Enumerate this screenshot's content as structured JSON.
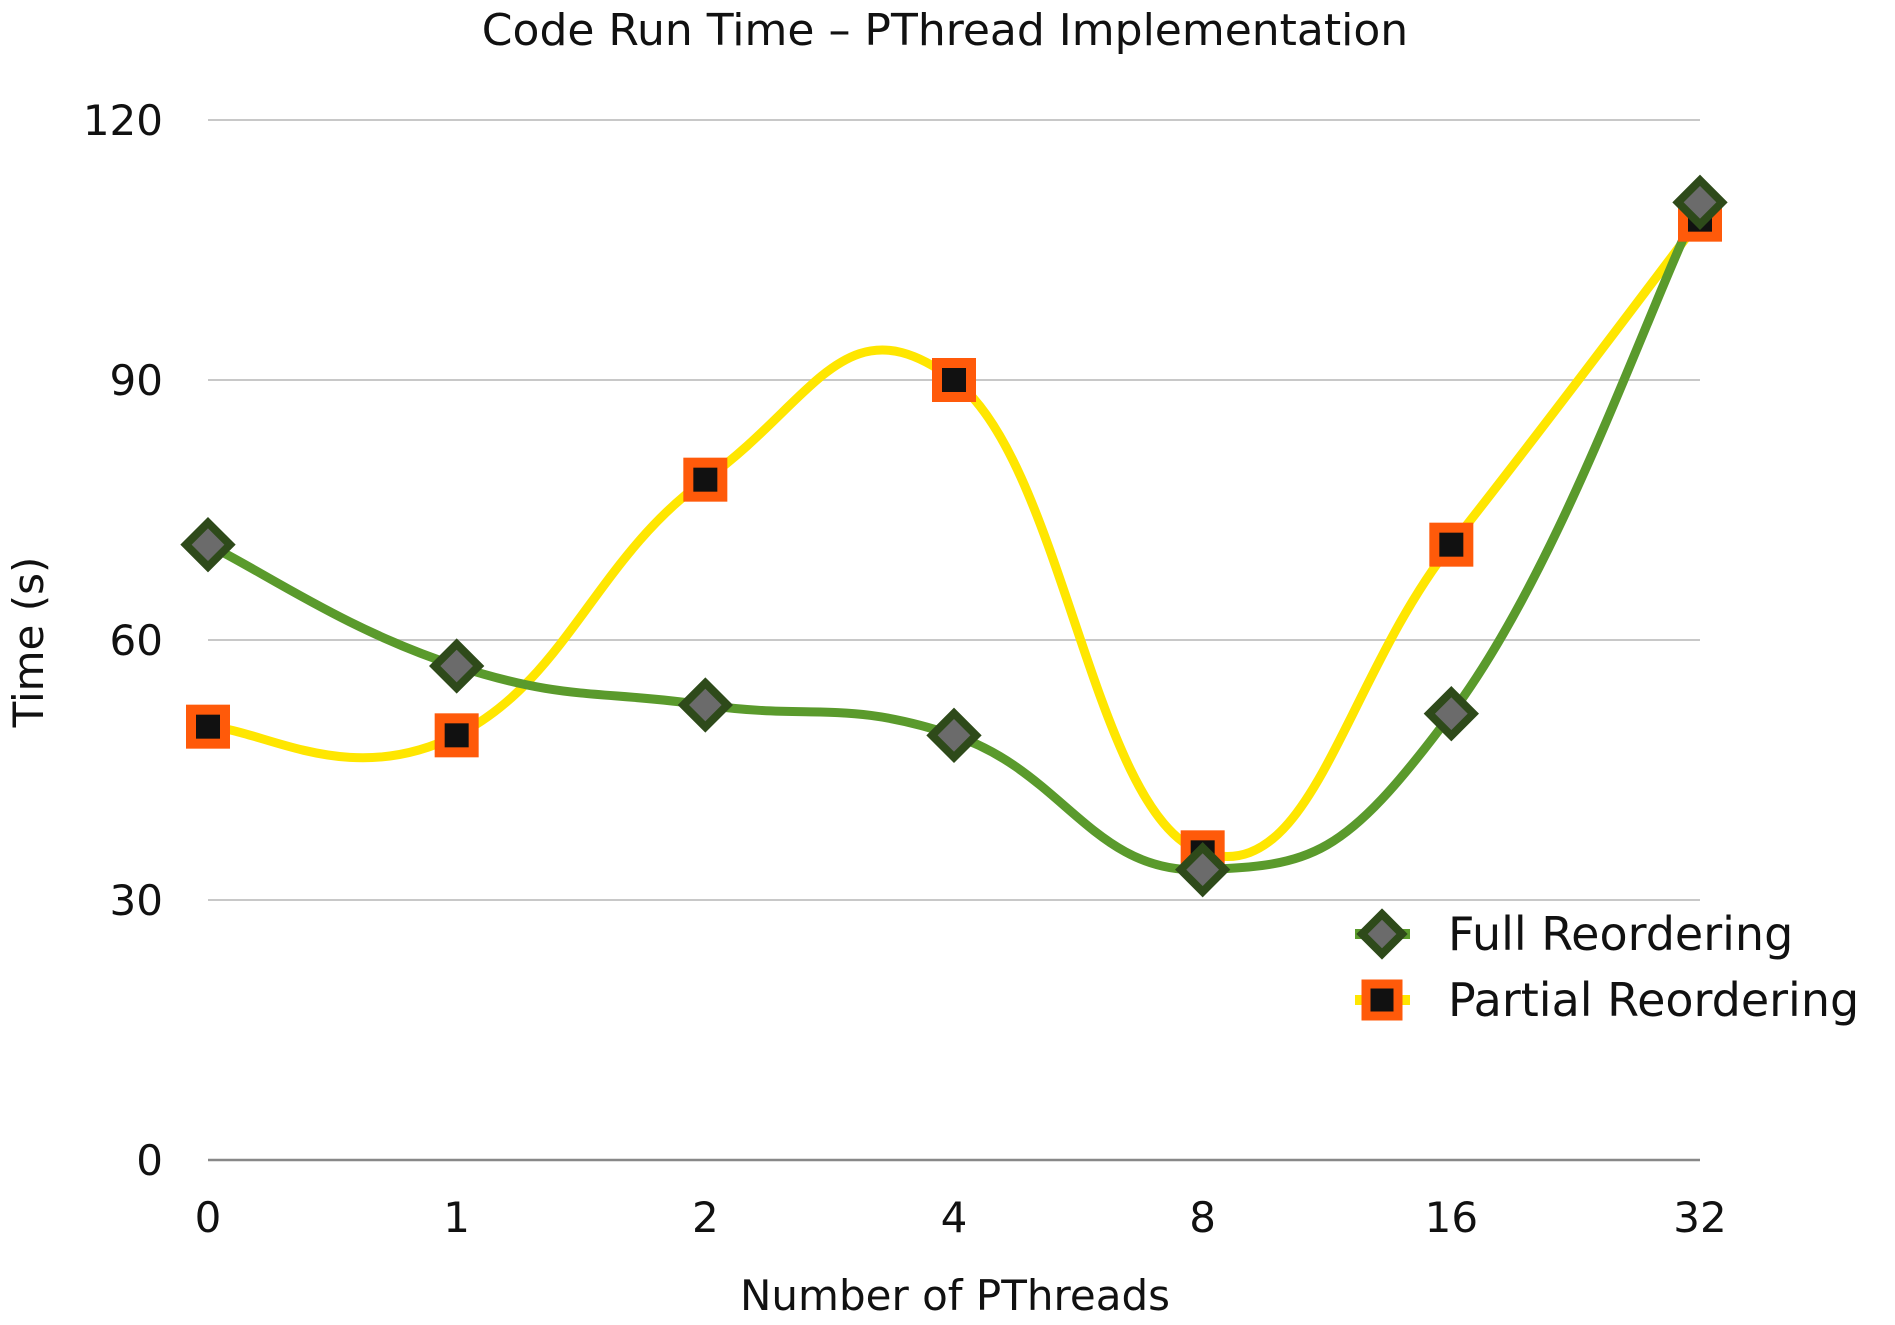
{
  "chart_data": {
    "type": "line",
    "title": "Code Run Time – PThread Implementation",
    "xlabel": "Number of PThreads",
    "ylabel": "Time (s)",
    "categories": [
      "0",
      "1",
      "2",
      "4",
      "8",
      "16",
      "32"
    ],
    "yticks": [
      "0",
      "30",
      "60",
      "90",
      "120"
    ],
    "ylim": [
      0,
      120
    ],
    "grid": true,
    "legend_position": "bottom-right",
    "series": [
      {
        "name": "Full Reordering",
        "values": [
          71,
          57,
          52.5,
          49,
          33.5,
          51.5,
          110.5
        ],
        "line_color": "#5a9a2c",
        "marker": "diamond",
        "marker_fill": "#6b6b6b",
        "marker_stroke": "#2e4a1a"
      },
      {
        "name": "Partial Reordering",
        "values": [
          50,
          49,
          78.5,
          90,
          35.5,
          71,
          108.5
        ],
        "line_color": "#ffe600",
        "marker": "square",
        "marker_fill": "#111111",
        "marker_stroke": "#ff5a0a"
      }
    ]
  }
}
